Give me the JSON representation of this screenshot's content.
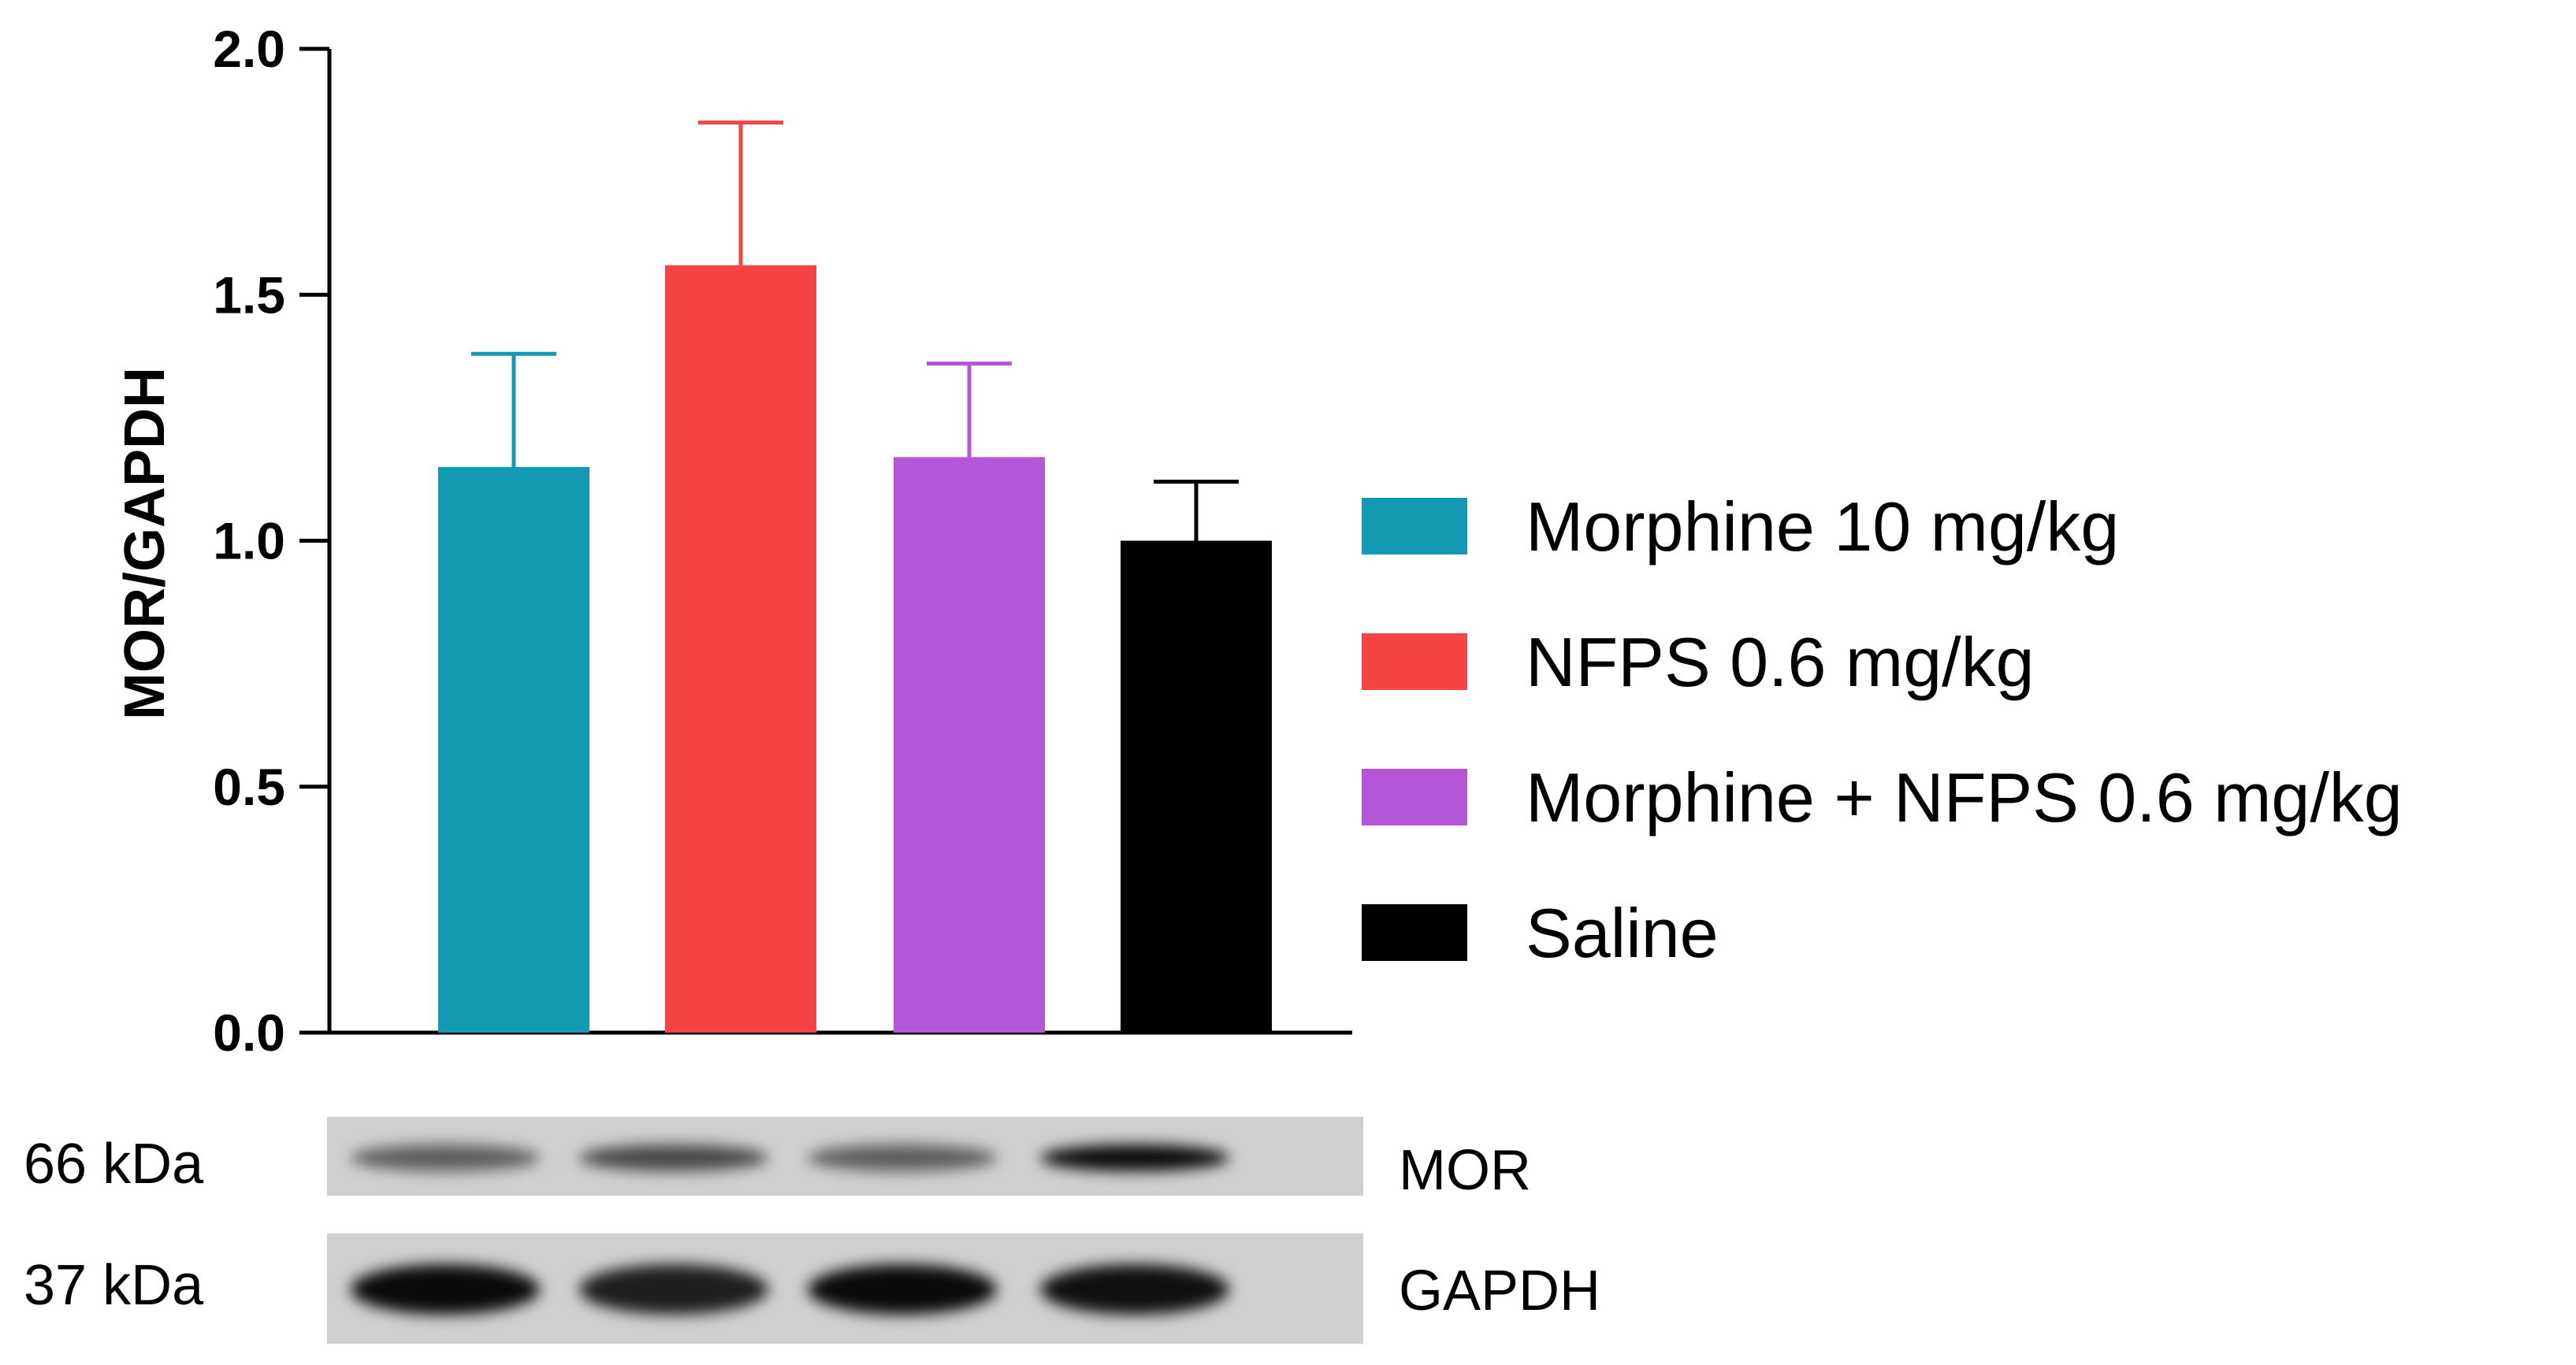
{
  "chart_data": {
    "type": "bar",
    "title": "",
    "xlabel": "",
    "ylabel": "MOR/GAPDH",
    "ylim": [
      0,
      2.0
    ],
    "yticks": [
      0.0,
      0.5,
      1.0,
      1.5,
      2.0
    ],
    "ytick_labels": [
      "0.0",
      "0.5",
      "1.0",
      "1.5",
      "2.0"
    ],
    "categories": [
      "Morphine 10 mg/kg",
      "NFPS 0.6 mg/kg",
      "Morphine + NFPS 0.6 mg/kg",
      "Saline"
    ],
    "values": [
      1.15,
      1.56,
      1.17,
      1.0
    ],
    "errors": [
      0.23,
      0.29,
      0.19,
      0.12
    ],
    "colors": [
      "#1499b3",
      "#f64343",
      "#b556d8",
      "#000000"
    ],
    "grid": false,
    "legend": {
      "placement": "right",
      "entries": [
        "Morphine 10 mg/kg",
        "NFPS 0.6 mg/kg",
        "Morphine + NFPS 0.6 mg/kg",
        "Saline"
      ]
    }
  },
  "blot": {
    "rows": [
      {
        "size_label": "66 kDa",
        "protein_label": "MOR",
        "band_intensity": [
          0.55,
          0.65,
          0.55,
          0.95
        ]
      },
      {
        "size_label": "37 kDa",
        "protein_label": "GAPDH",
        "band_intensity": [
          0.95,
          0.85,
          0.95,
          0.92
        ]
      }
    ]
  }
}
